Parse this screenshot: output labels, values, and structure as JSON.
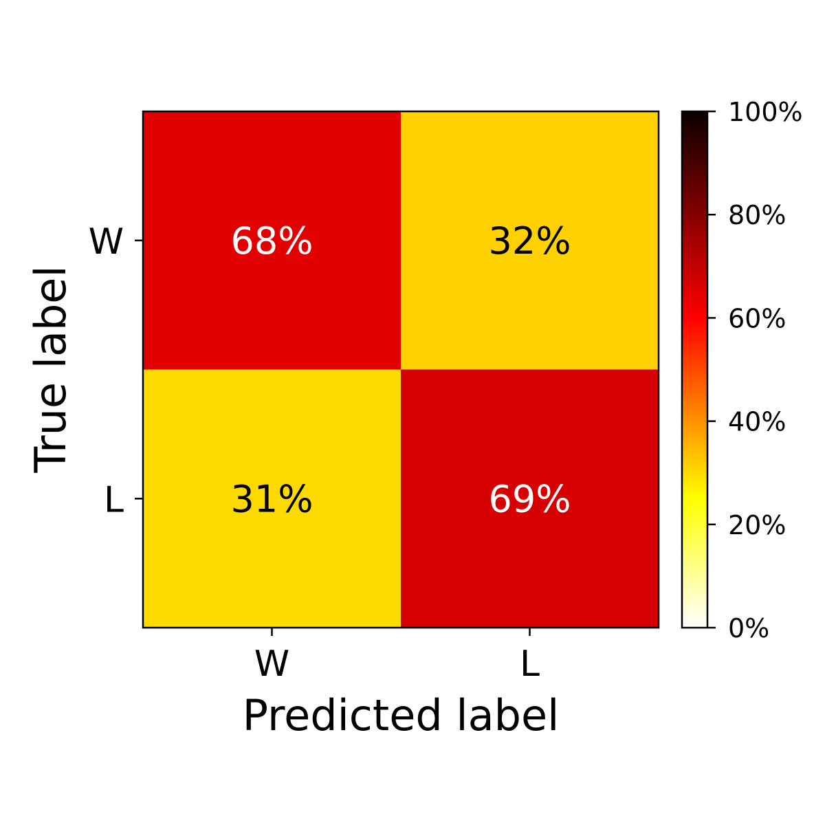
{
  "chart_data": {
    "type": "heatmap",
    "title": "",
    "x_categories": [
      "W",
      "L"
    ],
    "y_categories": [
      "W",
      "L"
    ],
    "xlabel": "Predicted label",
    "ylabel": "True label",
    "values": [
      [
        68,
        32
      ],
      [
        31,
        69
      ]
    ],
    "cell_labels": [
      [
        "68%",
        "32%"
      ],
      [
        "31%",
        "69%"
      ]
    ],
    "cell_colors": [
      [
        "#e00000",
        "#ffd100"
      ],
      [
        "#ffda00",
        "#d60000"
      ]
    ],
    "cell_text_colors": [
      [
        "#ffffff",
        "#000000"
      ],
      [
        "#000000",
        "#ffffff"
      ]
    ],
    "colorbar": {
      "colormap": "hot_r",
      "range": [
        0,
        100
      ],
      "ticks": [
        0,
        20,
        40,
        60,
        80,
        100
      ],
      "tick_labels": [
        "0%",
        "20%",
        "40%",
        "60%",
        "80%",
        "100%"
      ]
    },
    "grid": false
  }
}
